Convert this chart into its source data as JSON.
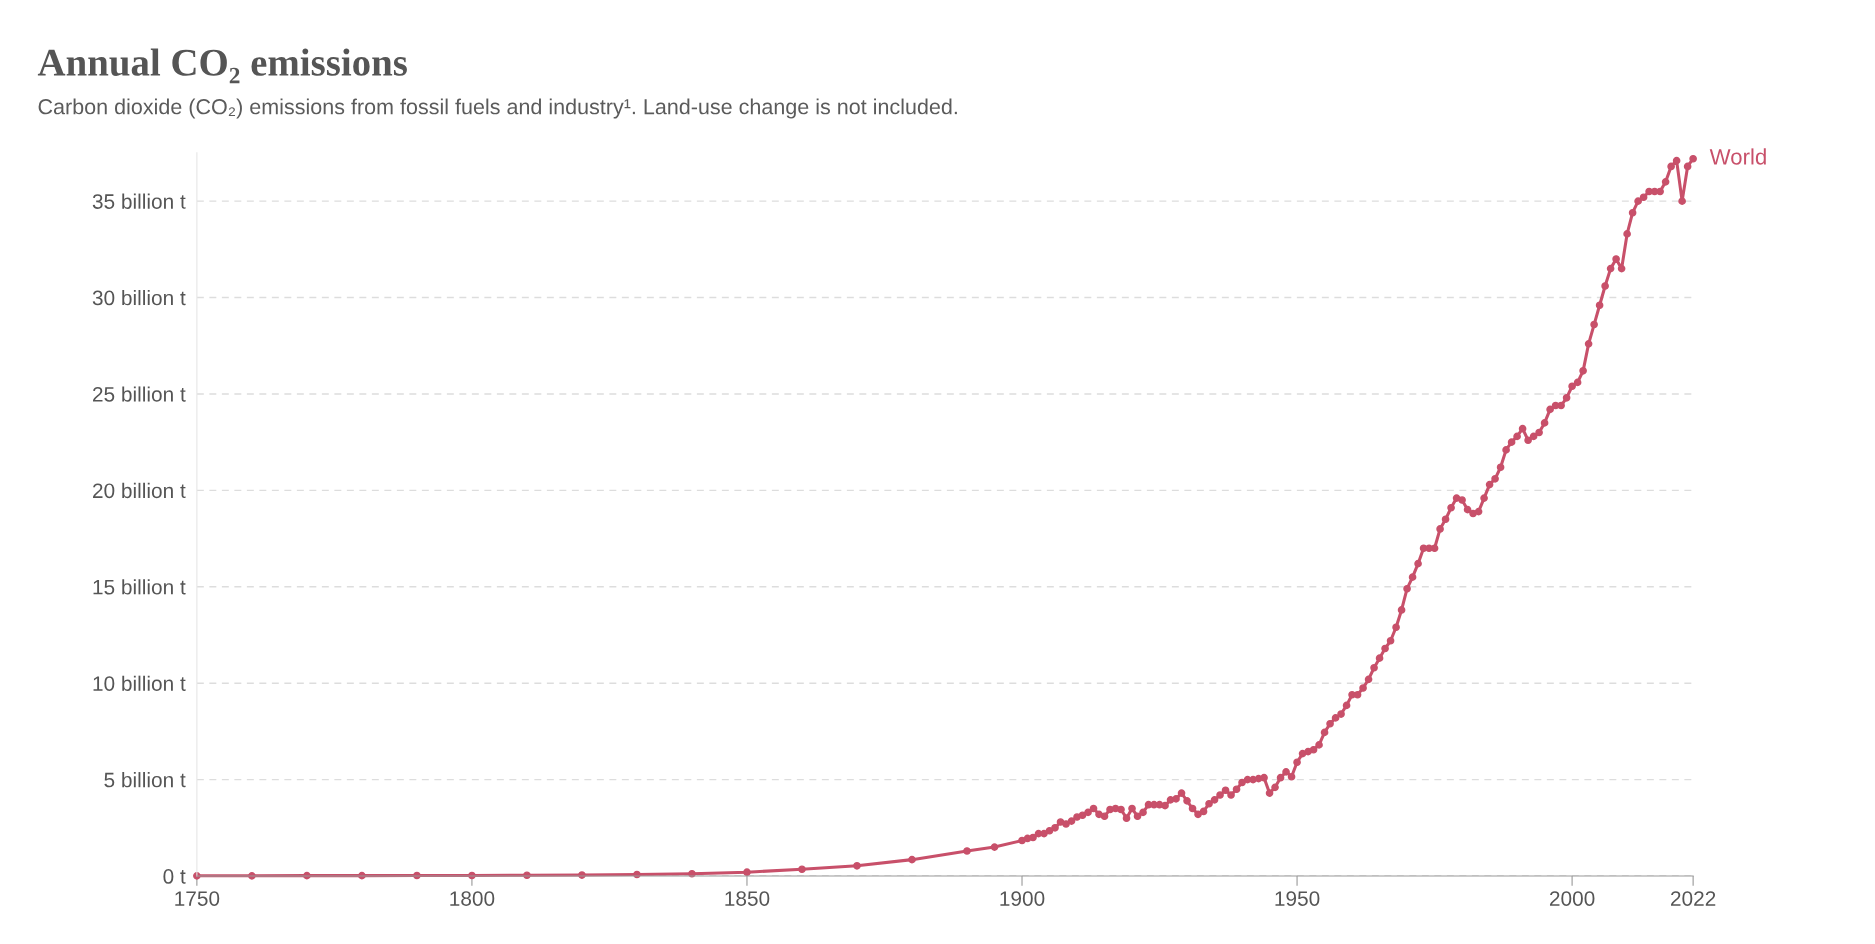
{
  "chart_data": {
    "type": "line",
    "title": "Annual CO₂ emissions",
    "subtitle": "Carbon dioxide (CO₂) emissions from fossil fuels and industry¹. Land-use change is not included.",
    "x": [
      1750,
      1760,
      1770,
      1780,
      1790,
      1800,
      1810,
      1820,
      1830,
      1840,
      1850,
      1860,
      1870,
      1880,
      1890,
      1895,
      1900,
      1901,
      1902,
      1903,
      1904,
      1905,
      1906,
      1907,
      1908,
      1909,
      1910,
      1911,
      1912,
      1913,
      1914,
      1915,
      1916,
      1917,
      1918,
      1919,
      1920,
      1921,
      1922,
      1923,
      1924,
      1925,
      1926,
      1927,
      1928,
      1929,
      1930,
      1931,
      1932,
      1933,
      1934,
      1935,
      1936,
      1937,
      1938,
      1939,
      1940,
      1941,
      1942,
      1943,
      1944,
      1945,
      1946,
      1947,
      1948,
      1949,
      1950,
      1951,
      1952,
      1953,
      1954,
      1955,
      1956,
      1957,
      1958,
      1959,
      1960,
      1961,
      1962,
      1963,
      1964,
      1965,
      1966,
      1967,
      1968,
      1969,
      1970,
      1971,
      1972,
      1973,
      1974,
      1975,
      1976,
      1977,
      1978,
      1979,
      1980,
      1981,
      1982,
      1983,
      1984,
      1985,
      1986,
      1987,
      1988,
      1989,
      1990,
      1991,
      1992,
      1993,
      1994,
      1995,
      1996,
      1997,
      1998,
      1999,
      2000,
      2001,
      2002,
      2003,
      2004,
      2005,
      2006,
      2007,
      2008,
      2009,
      2010,
      2011,
      2012,
      2013,
      2014,
      2015,
      2016,
      2017,
      2018,
      2019,
      2020,
      2021,
      2022
    ],
    "series": [
      {
        "name": "World",
        "color": "#c8506a",
        "values": [
          0.01,
          0.01,
          0.02,
          0.02,
          0.03,
          0.03,
          0.04,
          0.05,
          0.08,
          0.12,
          0.2,
          0.35,
          0.53,
          0.85,
          1.3,
          1.5,
          1.84,
          1.95,
          2.0,
          2.2,
          2.2,
          2.35,
          2.5,
          2.8,
          2.7,
          2.85,
          3.06,
          3.15,
          3.3,
          3.5,
          3.2,
          3.1,
          3.45,
          3.5,
          3.45,
          3.0,
          3.5,
          3.1,
          3.3,
          3.7,
          3.7,
          3.7,
          3.65,
          3.95,
          4.0,
          4.3,
          3.9,
          3.5,
          3.2,
          3.35,
          3.75,
          3.95,
          4.2,
          4.45,
          4.2,
          4.5,
          4.85,
          5.0,
          5.0,
          5.05,
          5.1,
          4.3,
          4.6,
          5.1,
          5.4,
          5.15,
          5.9,
          6.35,
          6.45,
          6.55,
          6.8,
          7.45,
          7.9,
          8.2,
          8.4,
          8.85,
          9.4,
          9.4,
          9.75,
          10.2,
          10.8,
          11.3,
          11.8,
          12.2,
          12.9,
          13.8,
          14.9,
          15.5,
          16.2,
          17.0,
          17.0,
          17.0,
          18.0,
          18.5,
          19.1,
          19.6,
          19.5,
          19.0,
          18.8,
          18.9,
          19.6,
          20.3,
          20.6,
          21.2,
          22.1,
          22.5,
          22.8,
          23.2,
          22.6,
          22.8,
          23.0,
          23.5,
          24.2,
          24.4,
          24.4,
          24.8,
          25.4,
          25.6,
          26.2,
          27.6,
          28.6,
          29.6,
          30.6,
          31.5,
          32.0,
          31.5,
          33.3,
          34.4,
          35.0,
          35.2,
          35.5,
          35.5,
          35.5,
          36.0,
          36.8,
          37.1,
          35.0,
          36.8,
          37.2
        ]
      }
    ],
    "ylim": [
      0,
      37.5
    ],
    "xlim": [
      1750,
      2022
    ],
    "xticks": [
      1750,
      1800,
      1850,
      1900,
      1950,
      2000,
      2022
    ],
    "yticks": [
      {
        "value": 0,
        "label": "0 t"
      },
      {
        "value": 5,
        "label": "5 billion t"
      },
      {
        "value": 10,
        "label": "10 billion t"
      },
      {
        "value": 15,
        "label": "15 billion t"
      },
      {
        "value": 20,
        "label": "20 billion t"
      },
      {
        "value": 25,
        "label": "25 billion t"
      },
      {
        "value": 30,
        "label": "30 billion t"
      },
      {
        "value": 35,
        "label": "35 billion t"
      }
    ],
    "grid": "y",
    "legend": "right",
    "marker": "circle",
    "line_style": "solid"
  }
}
